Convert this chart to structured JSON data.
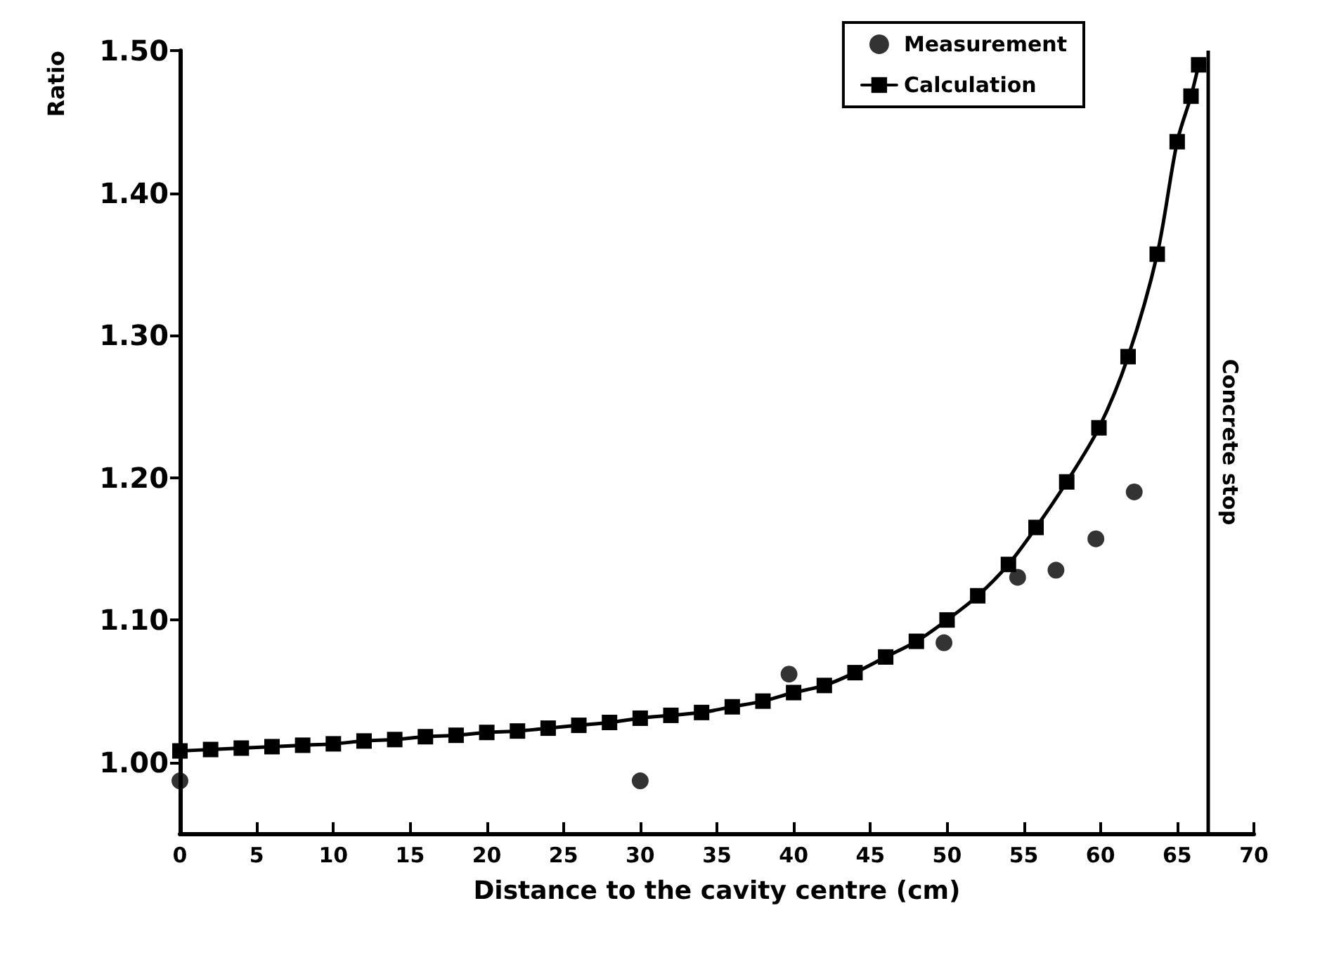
{
  "chart_data": {
    "type": "line",
    "xlabel": "Distance to the cavity centre (cm)",
    "ylabel": "Ratio",
    "xlim": [
      0,
      70
    ],
    "xticks": [
      0,
      5,
      10,
      15,
      20,
      25,
      30,
      35,
      40,
      45,
      50,
      55,
      60,
      65,
      70
    ],
    "ylim": [
      0.95,
      1.5
    ],
    "yticks": [
      {
        "value": 1.0,
        "label": "1.00"
      },
      {
        "value": 1.1,
        "label": "1.10"
      },
      {
        "value": 1.2,
        "label": "1.20"
      },
      {
        "value": 1.3,
        "label": "1.30"
      },
      {
        "value": 1.4,
        "label": "1.40"
      },
      {
        "value": 1.5,
        "label": "1.50"
      }
    ],
    "grid": false,
    "legend": "top right",
    "ref_lines": [
      {
        "axis": "x",
        "value": 67,
        "label": "Concrete stop",
        "color": "#000000"
      }
    ],
    "series": [
      {
        "name": "Measurement",
        "type": "scatter",
        "marker": "circle",
        "color": "#000000",
        "x": [
          0,
          30,
          39.7,
          49.8,
          54.6,
          57.1,
          59.7,
          62.2
        ],
        "values": [
          0.987,
          0.987,
          1.062,
          1.084,
          1.13,
          1.135,
          1.157,
          1.19
        ]
      },
      {
        "name": "Calculation",
        "marker": "square",
        "line_style": "solid",
        "color": "#000000",
        "x": [
          0,
          2,
          4,
          6,
          8,
          10,
          12,
          14,
          16,
          18,
          20,
          22,
          24,
          26,
          28,
          30,
          32,
          34,
          36,
          38,
          40,
          42,
          44,
          46,
          48,
          50,
          52,
          54,
          55.8,
          57.8,
          59.9,
          61.8,
          63.7,
          65,
          65.9,
          66.4
        ],
        "values": [
          1.008,
          1.009,
          1.01,
          1.011,
          1.012,
          1.013,
          1.015,
          1.016,
          1.018,
          1.019,
          1.021,
          1.022,
          1.024,
          1.026,
          1.028,
          1.031,
          1.033,
          1.035,
          1.039,
          1.043,
          1.049,
          1.054,
          1.063,
          1.074,
          1.085,
          1.1,
          1.117,
          1.139,
          1.165,
          1.197,
          1.235,
          1.285,
          1.357,
          1.436,
          1.468,
          1.49
        ]
      }
    ]
  }
}
